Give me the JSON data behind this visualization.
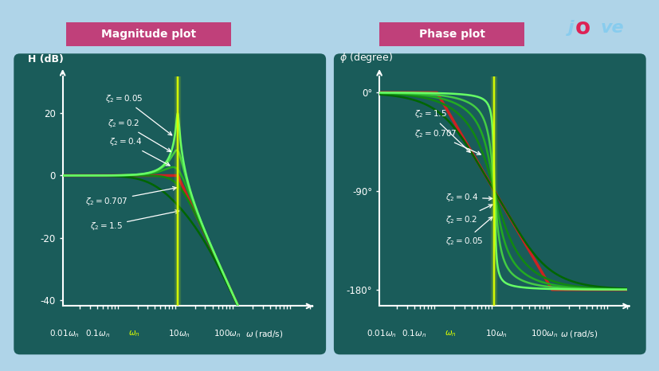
{
  "bg_color": "#afd4e8",
  "panel_color": "#1a5c5a",
  "title_bg_color": "#c0407a",
  "title_text_color": "#ffffff",
  "mag_title": "Magnitude plot",
  "phase_title": "Phase plot",
  "axis_color": "#ffffff",
  "text_color": "#ffffff",
  "zeta_values": [
    1.5,
    0.707,
    0.4,
    0.2,
    0.05
  ],
  "zeta_colors": [
    "#006600",
    "#118811",
    "#22aa22",
    "#44cc44",
    "#66ff66"
  ],
  "asymptote_color": "#cc2222",
  "omega_n_color": "#ddff00",
  "mag_ylim": [
    -42,
    32
  ],
  "phase_ylim": [
    -195,
    15
  ],
  "xlim": [
    0.01,
    200
  ],
  "mag_yticks": [
    -40,
    -20,
    0,
    20
  ],
  "phase_yticks": [
    -180,
    -90,
    0
  ],
  "mag_ytick_labels": [
    "-40",
    "-20",
    "0",
    "20"
  ],
  "phase_ytick_labels": [
    "-180°",
    "-90°",
    "0°"
  ]
}
